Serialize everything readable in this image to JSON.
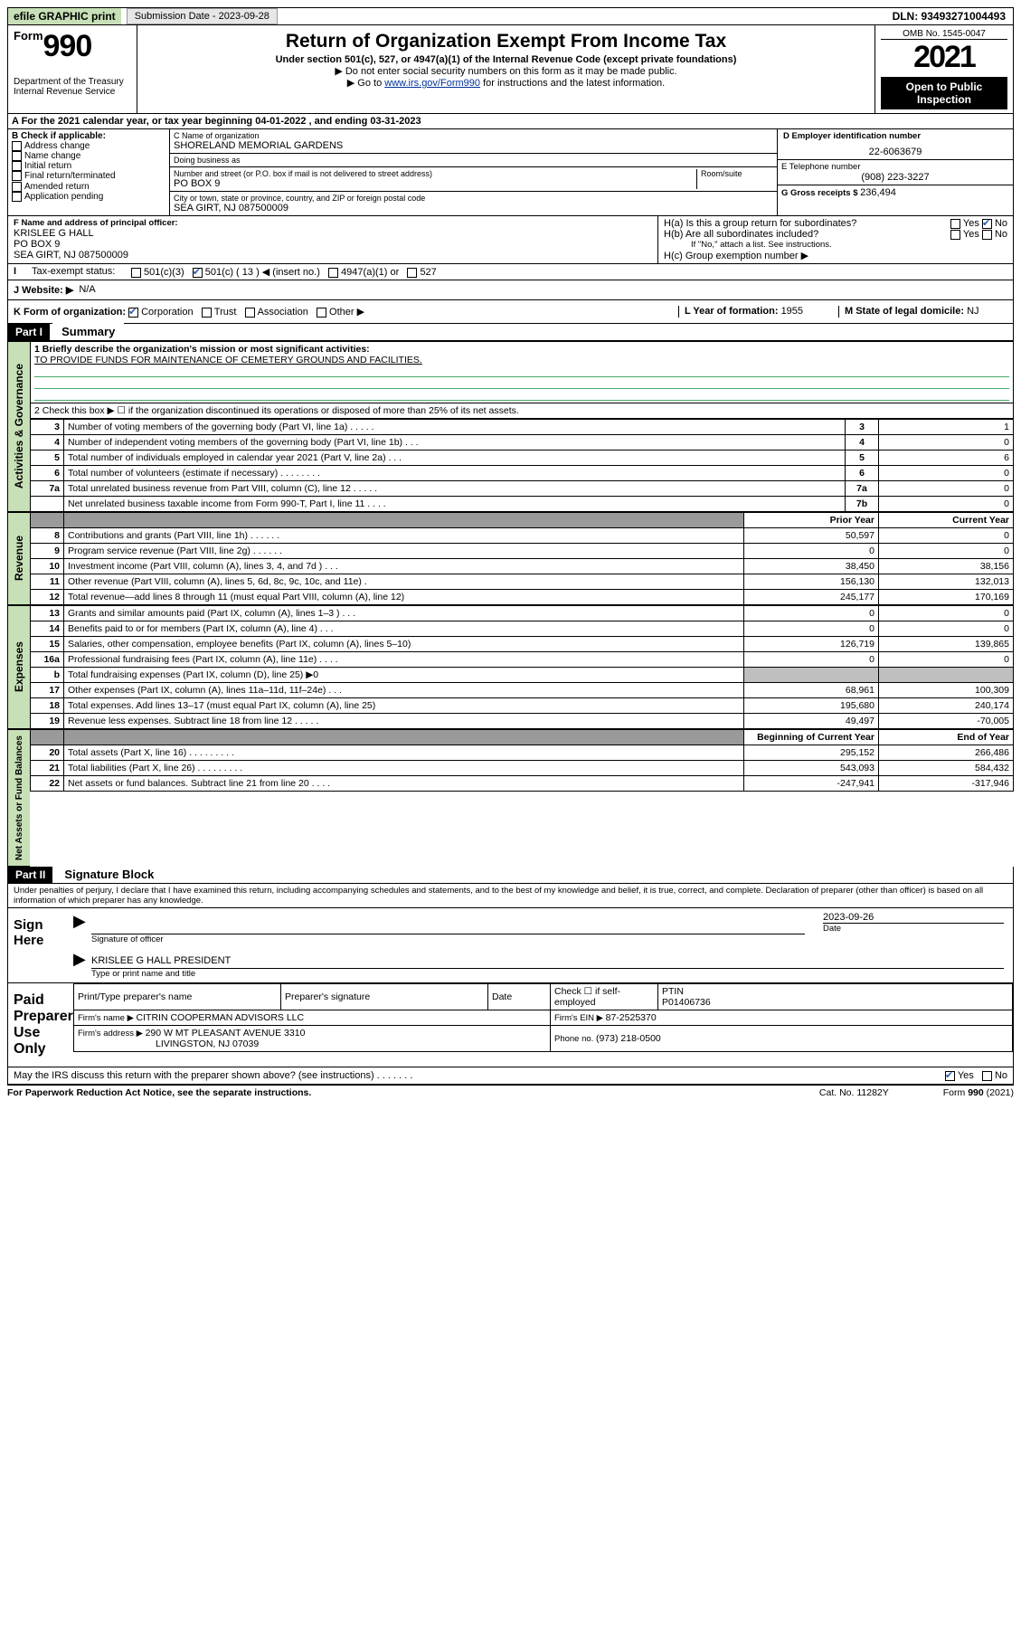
{
  "topbar": {
    "efile": "efile GRAPHIC print",
    "submission_label": "Submission Date - 2023-09-28",
    "dln": "DLN: 93493271004493"
  },
  "header": {
    "form_word": "Form",
    "form_num": "990",
    "title": "Return of Organization Exempt From Income Tax",
    "subtitle": "Under section 501(c), 527, or 4947(a)(1) of the Internal Revenue Code (except private foundations)",
    "note1": "▶ Do not enter social security numbers on this form as it may be made public.",
    "note2_pre": "▶ Go to ",
    "note2_link": "www.irs.gov/Form990",
    "note2_post": " for instructions and the latest information.",
    "dept": "Department of the Treasury\nInternal Revenue Service",
    "omb": "OMB No. 1545-0047",
    "year": "2021",
    "open": "Open to Public Inspection"
  },
  "periodA": {
    "text_pre": "A For the 2021 calendar year, or tax year beginning ",
    "begin": "04-01-2022",
    "mid": " , and ending ",
    "end": "03-31-2023"
  },
  "boxB": {
    "label": "B Check if applicable:",
    "items": [
      "Address change",
      "Name change",
      "Initial return",
      "Final return/terminated",
      "Amended return",
      "Application pending"
    ]
  },
  "boxC": {
    "name_label": "C Name of organization",
    "name": "SHORELAND MEMORIAL GARDENS",
    "dba_label": "Doing business as",
    "dba": "",
    "street_label": "Number and street (or P.O. box if mail is not delivered to street address)",
    "room_label": "Room/suite",
    "street": "PO BOX 9",
    "city_label": "City or town, state or province, country, and ZIP or foreign postal code",
    "city": "SEA GIRT, NJ  087500009"
  },
  "boxD": {
    "label": "D Employer identification number",
    "value": "22-6063679"
  },
  "boxE": {
    "label": "E Telephone number",
    "value": "(908) 223-3227"
  },
  "boxG": {
    "label": "G Gross receipts $ ",
    "value": "236,494"
  },
  "boxF": {
    "label": "F Name and address of principal officer:",
    "name": "KRISLEE G HALL",
    "addr1": "PO BOX 9",
    "addr2": "SEA GIRT, NJ  087500009"
  },
  "boxH": {
    "a": "H(a)  Is this a group return for subordinates?",
    "b": "H(b)  Are all subordinates included?",
    "b_note": "If \"No,\" attach a list. See instructions.",
    "c": "H(c)  Group exemption number ▶",
    "yes": "Yes",
    "no": "No"
  },
  "taxexempt": {
    "label": "Tax-exempt status:",
    "c3": "501(c)(3)",
    "c_other_pre": "501(c) ( ",
    "c_other_val": "13",
    "c_other_post": " ) ◀ (insert no.)",
    "a1": "4947(a)(1) or",
    "s527": "527"
  },
  "lineJ": {
    "label": "J  Website: ▶",
    "value": "N/A"
  },
  "lineK": {
    "label": "K Form of organization:",
    "opts": [
      "Corporation",
      "Trust",
      "Association",
      "Other ▶"
    ],
    "checked_index": 0
  },
  "lineL": {
    "label": "L Year of formation: ",
    "value": "1955"
  },
  "lineM": {
    "label": "M State of legal domicile: ",
    "value": "NJ"
  },
  "partI": {
    "bar": "Part I",
    "title": "Summary",
    "line1_label": "1  Briefly describe the organization's mission or most significant activities:",
    "line1_text": "TO PROVIDE FUNDS FOR MAINTENANCE OF CEMETERY GROUNDS AND FACILITIES.",
    "line2": "2  Check this box ▶ ☐  if the organization discontinued its operations or disposed of more than 25% of its net assets.",
    "govern_label": "Activities & Governance",
    "rows_gov": [
      {
        "n": "3",
        "d": "Number of voting members of the governing body (Part VI, line 1a)  .     .     .     .     .",
        "k": "3",
        "v": "1"
      },
      {
        "n": "4",
        "d": "Number of independent voting members of the governing body (Part VI, line 1b)  .     .     .",
        "k": "4",
        "v": "0"
      },
      {
        "n": "5",
        "d": "Total number of individuals employed in calendar year 2021 (Part V, line 2a)  .     .     .",
        "k": "5",
        "v": "6"
      },
      {
        "n": "6",
        "d": "Total number of volunteers (estimate if necessary)  .     .     .     .     .     .     .     .",
        "k": "6",
        "v": "0"
      },
      {
        "n": "7a",
        "d": "Total unrelated business revenue from Part VIII, column (C), line 12  .     .     .     .     .",
        "k": "7a",
        "v": "0"
      },
      {
        "n": "",
        "d": "Net unrelated business taxable income from Form 990-T, Part I, line 11  .     .     .     .",
        "k": "7b",
        "v": "0"
      }
    ],
    "rev_label": "Revenue",
    "col_prior": "Prior Year",
    "col_curr": "Current Year",
    "rows_rev": [
      {
        "n": "8",
        "d": "Contributions and grants (Part VIII, line 1h)  .     .     .     .     .     .",
        "p": "50,597",
        "c": "0"
      },
      {
        "n": "9",
        "d": "Program service revenue (Part VIII, line 2g)  .     .     .     .     .     .",
        "p": "0",
        "c": "0"
      },
      {
        "n": "10",
        "d": "Investment income (Part VIII, column (A), lines 3, 4, and 7d )  .     .     .",
        "p": "38,450",
        "c": "38,156"
      },
      {
        "n": "11",
        "d": "Other revenue (Part VIII, column (A), lines 5, 6d, 8c, 9c, 10c, and 11e)  .",
        "p": "156,130",
        "c": "132,013"
      },
      {
        "n": "12",
        "d": "Total revenue—add lines 8 through 11 (must equal Part VIII, column (A), line 12)",
        "p": "245,177",
        "c": "170,169"
      }
    ],
    "exp_label": "Expenses",
    "rows_exp": [
      {
        "n": "13",
        "d": "Grants and similar amounts paid (Part IX, column (A), lines 1–3 )  .     .     .",
        "p": "0",
        "c": "0"
      },
      {
        "n": "14",
        "d": "Benefits paid to or for members (Part IX, column (A), line 4)  .     .     .",
        "p": "0",
        "c": "0"
      },
      {
        "n": "15",
        "d": "Salaries, other compensation, employee benefits (Part IX, column (A), lines 5–10)",
        "p": "126,719",
        "c": "139,865"
      },
      {
        "n": "16a",
        "d": "Professional fundraising fees (Part IX, column (A), line 11e)  .     .     .     .",
        "p": "0",
        "c": "0"
      },
      {
        "n": "b",
        "d": "Total fundraising expenses (Part IX, column (D), line 25) ▶0",
        "p": "__SHADE__",
        "c": "__SHADE__"
      },
      {
        "n": "17",
        "d": "Other expenses (Part IX, column (A), lines 11a–11d, 11f–24e)  .     .     .",
        "p": "68,961",
        "c": "100,309"
      },
      {
        "n": "18",
        "d": "Total expenses. Add lines 13–17 (must equal Part IX, column (A), line 25)",
        "p": "195,680",
        "c": "240,174"
      },
      {
        "n": "19",
        "d": "Revenue less expenses. Subtract line 18 from line 12  .     .     .     .     .",
        "p": "49,497",
        "c": "-70,005"
      }
    ],
    "net_label": "Net Assets or Fund Balances",
    "col_begin": "Beginning of Current Year",
    "col_end": "End of Year",
    "rows_net": [
      {
        "n": "20",
        "d": "Total assets (Part X, line 16)  .     .     .     .     .     .     .     .     .",
        "p": "295,152",
        "c": "266,486"
      },
      {
        "n": "21",
        "d": "Total liabilities (Part X, line 26)  .     .     .     .     .     .     .     .     .",
        "p": "543,093",
        "c": "584,432"
      },
      {
        "n": "22",
        "d": "Net assets or fund balances. Subtract line 21 from line 20  .     .     .     .",
        "p": "-247,941",
        "c": "-317,946"
      }
    ]
  },
  "partII": {
    "bar": "Part II",
    "title": "Signature Block",
    "decl": "Under penalties of perjury, I declare that I have examined this return, including accompanying schedules and statements, and to the best of my knowledge and belief, it is true, correct, and complete. Declaration of preparer (other than officer) is based on all information of which preparer has any knowledge."
  },
  "sign": {
    "here": "Sign Here",
    "sig_officer": "Signature of officer",
    "date_lbl": "Date",
    "date_val": "2023-09-26",
    "name": "KRISLEE G HALL PRESIDENT",
    "name_lbl": "Type or print name and title"
  },
  "preparer": {
    "here": "Paid Preparer Use Only",
    "print_lbl": "Print/Type preparer's name",
    "sig_lbl": "Preparer's signature",
    "date_lbl": "Date",
    "check_lbl": "Check ☐ if self-employed",
    "ptin_lbl": "PTIN",
    "ptin": "P01406736",
    "firm_name_lbl": "Firm's name    ▶ ",
    "firm_name": "CITRIN COOPERMAN ADVISORS LLC",
    "firm_ein_lbl": "Firm's EIN ▶ ",
    "firm_ein": "87-2525370",
    "firm_addr_lbl": "Firm's address ▶ ",
    "firm_addr1": "290 W MT PLEASANT AVENUE 3310",
    "firm_addr2": "LIVINGSTON, NJ  07039",
    "phone_lbl": "Phone no. ",
    "phone": "(973) 218-0500"
  },
  "discuss": {
    "q": "May the IRS discuss this return with the preparer shown above? (see instructions)  .     .     .     .     .     .     .",
    "yes": "Yes",
    "no": "No"
  },
  "footer": {
    "left": "For Paperwork Reduction Act Notice, see the separate instructions.",
    "mid": "Cat. No. 11282Y",
    "right": "Form 990 (2021)"
  }
}
